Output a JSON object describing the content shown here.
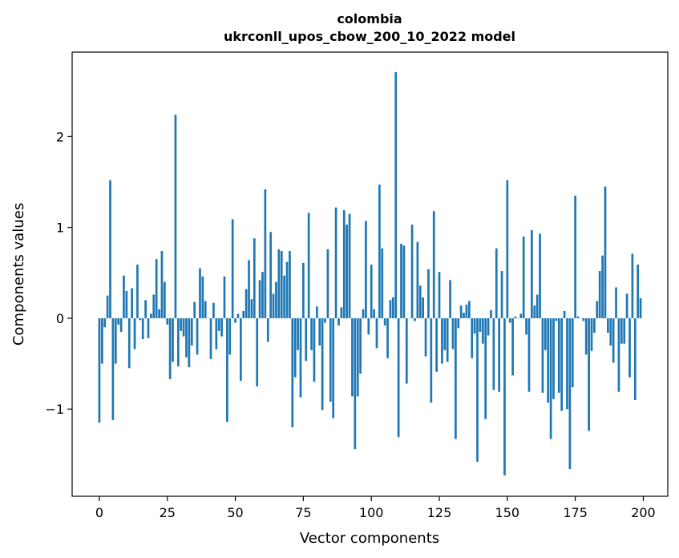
{
  "chart_data": {
    "type": "bar",
    "title": "colombia",
    "subtitle": "ukrconll_upos_cbow_200_10_2022 model",
    "xlabel": "Vector components",
    "ylabel": "Components values",
    "xlim": [
      -10,
      209
    ],
    "ylim": [
      -1.96,
      2.93
    ],
    "xticks": [
      0,
      25,
      50,
      75,
      100,
      125,
      150,
      175,
      200
    ],
    "xtick_labels": [
      "0",
      "25",
      "50",
      "75",
      "100",
      "125",
      "150",
      "175",
      "200"
    ],
    "yticks": [
      -1,
      0,
      1,
      2
    ],
    "ytick_labels": [
      "−1",
      "0",
      "1",
      "2"
    ],
    "grid": false,
    "bar_color": "#1f77b4",
    "x": [
      0,
      1,
      2,
      3,
      4,
      5,
      6,
      7,
      8,
      9,
      10,
      11,
      12,
      13,
      14,
      15,
      16,
      17,
      18,
      19,
      20,
      21,
      22,
      23,
      24,
      25,
      26,
      27,
      28,
      29,
      30,
      31,
      32,
      33,
      34,
      35,
      36,
      37,
      38,
      39,
      40,
      41,
      42,
      43,
      44,
      45,
      46,
      47,
      48,
      49,
      50,
      51,
      52,
      53,
      54,
      55,
      56,
      57,
      58,
      59,
      60,
      61,
      62,
      63,
      64,
      65,
      66,
      67,
      68,
      69,
      70,
      71,
      72,
      73,
      74,
      75,
      76,
      77,
      78,
      79,
      80,
      81,
      82,
      83,
      84,
      85,
      86,
      87,
      88,
      89,
      90,
      91,
      92,
      93,
      94,
      95,
      96,
      97,
      98,
      99,
      100,
      101,
      102,
      103,
      104,
      105,
      106,
      107,
      108,
      109,
      110,
      111,
      112,
      113,
      114,
      115,
      116,
      117,
      118,
      119,
      120,
      121,
      122,
      123,
      124,
      125,
      126,
      127,
      128,
      129,
      130,
      131,
      132,
      133,
      134,
      135,
      136,
      137,
      138,
      139,
      140,
      141,
      142,
      143,
      144,
      145,
      146,
      147,
      148,
      149,
      150,
      151,
      152,
      153,
      154,
      155,
      156,
      157,
      158,
      159,
      160,
      161,
      162,
      163,
      164,
      165,
      166,
      167,
      168,
      169,
      170,
      171,
      172,
      173,
      174,
      175,
      176,
      177,
      178,
      179,
      180,
      181,
      182,
      183,
      184,
      185,
      186,
      187,
      188,
      189,
      190,
      191,
      192,
      193,
      194,
      195,
      196,
      197,
      198,
      199
    ],
    "values": [
      -1.15,
      -0.5,
      -0.1,
      0.25,
      1.52,
      -1.12,
      -0.5,
      -0.07,
      -0.15,
      0.47,
      0.3,
      -0.55,
      0.33,
      -0.34,
      0.59,
      -0.02,
      -0.23,
      0.2,
      -0.22,
      0.05,
      0.26,
      0.65,
      0.1,
      0.74,
      0.4,
      -0.07,
      -0.67,
      -0.48,
      2.24,
      -0.53,
      -0.14,
      -0.2,
      -0.43,
      -0.54,
      -0.3,
      0.18,
      -0.4,
      0.55,
      0.46,
      0.19,
      0.0,
      -0.45,
      0.17,
      -0.34,
      -0.14,
      -0.2,
      0.46,
      -1.14,
      -0.4,
      1.09,
      -0.05,
      0.05,
      -0.69,
      0.08,
      0.32,
      0.64,
      0.21,
      0.88,
      -0.75,
      0.42,
      0.51,
      1.42,
      -0.26,
      0.95,
      0.27,
      0.4,
      0.76,
      0.74,
      0.47,
      0.62,
      0.74,
      -1.2,
      -0.65,
      -0.35,
      -0.87,
      0.61,
      -0.47,
      1.16,
      -0.35,
      -0.7,
      0.13,
      -0.3,
      -1.01,
      -0.05,
      0.76,
      -0.92,
      -1.1,
      1.22,
      -0.08,
      0.12,
      1.19,
      1.03,
      1.15,
      -0.86,
      -1.44,
      -0.86,
      -0.61,
      0.1,
      1.07,
      -0.18,
      0.59,
      0.1,
      -0.33,
      1.47,
      0.77,
      -0.08,
      -0.44,
      0.2,
      0.23,
      2.71,
      -1.31,
      0.82,
      0.8,
      -0.72,
      0.0,
      1.03,
      -0.03,
      0.84,
      0.36,
      0.23,
      -0.42,
      0.54,
      -0.93,
      1.18,
      -0.59,
      0.51,
      -0.5,
      -0.35,
      -0.48,
      0.42,
      -0.34,
      -1.33,
      -0.11,
      0.14,
      0.06,
      0.15,
      0.19,
      -0.44,
      -0.17,
      -1.58,
      -0.15,
      -0.28,
      -1.11,
      -0.19,
      0.09,
      -0.79,
      0.77,
      -0.81,
      0.52,
      -1.73,
      1.52,
      -0.05,
      -0.63,
      0.02,
      0.0,
      0.05,
      0.9,
      -0.18,
      -0.81,
      0.97,
      0.14,
      0.26,
      0.93,
      -0.82,
      -0.35,
      -0.93,
      -1.33,
      -0.89,
      -0.03,
      -0.82,
      -1.02,
      0.08,
      -1.0,
      -1.66,
      -0.76,
      1.35,
      0.02,
      0.0,
      -0.03,
      -0.4,
      -1.24,
      -0.36,
      -0.16,
      0.19,
      0.52,
      0.69,
      1.45,
      -0.16,
      -0.3,
      -0.49,
      0.34,
      -0.81,
      -0.28,
      -0.28,
      0.27,
      -0.65,
      0.71,
      -0.9,
      0.59,
      0.22
    ]
  }
}
